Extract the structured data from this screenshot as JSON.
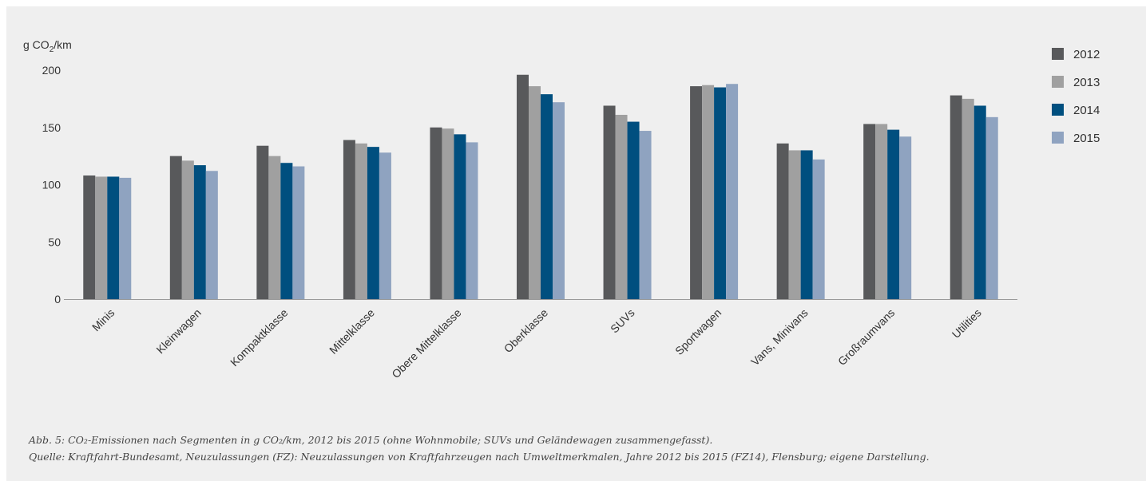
{
  "chart_data": {
    "type": "bar",
    "unit_label": {
      "prefix": "g CO",
      "sub": "2",
      "suffix": "/km"
    },
    "categories": [
      "Minis",
      "Kleinwagen",
      "Kompaktklasse",
      "Mittelklasse",
      "Obere Mittelklasse",
      "Oberklasse",
      "SUVs",
      "Sportwagen",
      "Vans, Minivans",
      "Großraumvans",
      "Utilities"
    ],
    "series": [
      {
        "name": "2012",
        "color": "#58595b",
        "values": [
          108,
          125,
          134,
          139,
          150,
          196,
          169,
          186,
          136,
          153,
          178
        ]
      },
      {
        "name": "2013",
        "color": "#a0a0a0",
        "values": [
          107,
          121,
          125,
          136,
          149,
          186,
          161,
          187,
          130,
          153,
          175
        ]
      },
      {
        "name": "2014",
        "color": "#004f7f",
        "values": [
          107,
          117,
          119,
          133,
          144,
          179,
          155,
          185,
          130,
          148,
          169
        ]
      },
      {
        "name": "2015",
        "color": "#8fa3c0",
        "values": [
          106,
          112,
          116,
          128,
          137,
          172,
          147,
          188,
          122,
          142,
          159
        ]
      }
    ],
    "ylim": [
      0,
      200
    ],
    "yticks": [
      "0",
      "50",
      "100",
      "150",
      "200"
    ],
    "grid": false,
    "legend_position": "top-right"
  },
  "caption": {
    "line1": "Abb. 5: CO₂-Emissionen nach Segmenten in g CO₂/km, 2012 bis 2015 (ohne Wohnmobile; SUVs und Geländewagen zusammengefasst).",
    "line2": "Quelle: Kraftfahrt-Bundesamt, Neuzulassungen (FZ): Neuzulassungen von Kraftfahrzeugen nach Umweltmerkmalen, Jahre 2012 bis 2015 (FZ14), Flensburg; eigene Darstellung."
  }
}
